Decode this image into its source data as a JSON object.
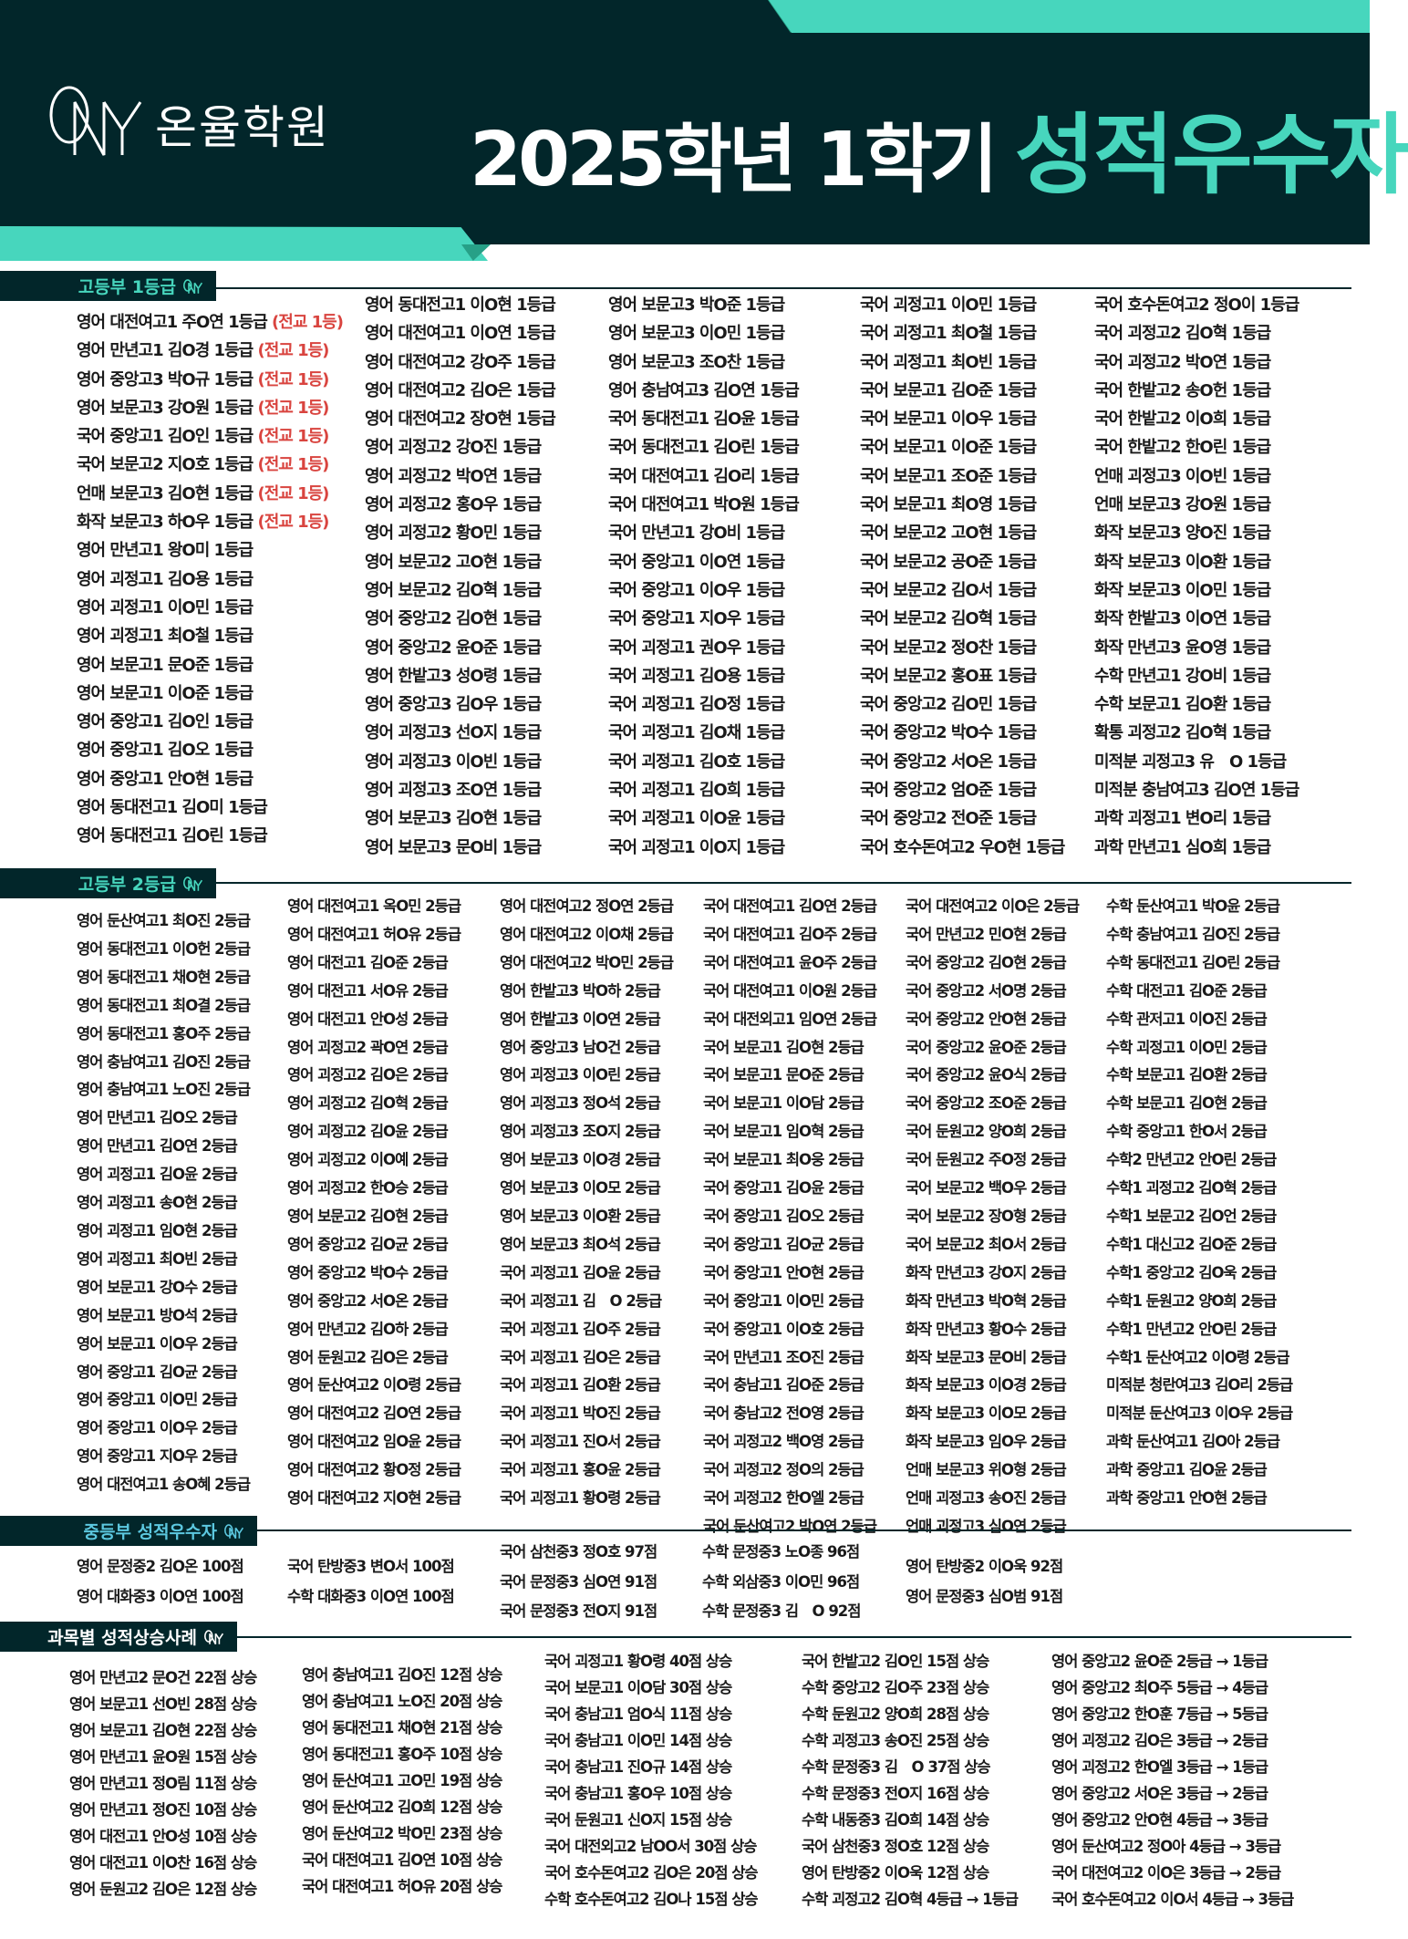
{
  "header": {
    "brand_name": "온율학원",
    "logo_text": "ONY",
    "title": "2025학년 1학기",
    "title_accent": "성적우수자",
    "colors": {
      "dark": "#02262a",
      "accent": "#47d6bd",
      "highlight": "#d9443f"
    }
  },
  "sections": {
    "high1": {
      "label": "고등부 1등급",
      "columns": [
        [
          {
            "text": "영어 대전여고1 주O연 1등급",
            "badge": "(전교 1등)"
          },
          {
            "text": "영어 만년고1 김O경 1등급",
            "badge": "(전교 1등)"
          },
          {
            "text": "영어 중앙고3 박O규 1등급",
            "badge": "(전교 1등)"
          },
          {
            "text": "영어 보문고3 강O원 1등급",
            "badge": "(전교 1등)"
          },
          {
            "text": "국어 중앙고1 김O인 1등급",
            "badge": "(전교 1등)"
          },
          {
            "text": "국어 보문고2 지O호 1등급",
            "badge": "(전교 1등)"
          },
          {
            "text": "언매 보문고3 김O현 1등급",
            "badge": "(전교 1등)"
          },
          {
            "text": "화작 보문고3 하O우 1등급",
            "badge": "(전교 1등)"
          },
          {
            "text": "영어 만년고1 왕O미 1등급"
          },
          {
            "text": "영어 괴정고1 김O용 1등급"
          },
          {
            "text": "영어 괴정고1 이O민 1등급"
          },
          {
            "text": "영어 괴정고1 최O철 1등급"
          },
          {
            "text": "영어 보문고1 문O준 1등급"
          },
          {
            "text": "영어 보문고1 이O준 1등급"
          },
          {
            "text": "영어 중앙고1 김O인 1등급"
          },
          {
            "text": "영어 중앙고1 김O오 1등급"
          },
          {
            "text": "영어 중앙고1 안O현 1등급"
          },
          {
            "text": "영어 동대전고1 김O미 1등급"
          },
          {
            "text": "영어 동대전고1 김O린 1등급"
          }
        ],
        [
          "영어 동대전고1 이O현 1등급",
          "영어 대전여고1 이O연 1등급",
          "영어 대전여고2 강O주 1등급",
          "영어 대전여고2 김O은 1등급",
          "영어 대전여고2 장O현 1등급",
          "영어 괴정고2 강O진 1등급",
          "영어 괴정고2 박O연 1등급",
          "영어 괴정고2 홍O우 1등급",
          "영어 괴정고2 황O민 1등급",
          "영어 보문고2 고O현 1등급",
          "영어 보문고2 김O혁 1등급",
          "영어 중앙고2 김O현 1등급",
          "영어 중앙고2 윤O준 1등급",
          "영어 한밭고3 성O령 1등급",
          "영어 중앙고3 김O우 1등급",
          "영어 괴정고3 선O지 1등급",
          "영어 괴정고3 이O빈 1등급",
          "영어 괴정고3 조O연 1등급",
          "영어 보문고3 김O현 1등급",
          "영어 보문고3 문O비 1등급"
        ],
        [
          "영어 보문고3 박O준 1등급",
          "영어 보문고3 이O민 1등급",
          "영어 보문고3 조O찬 1등급",
          "영어 충남여고3 김O연 1등급",
          "국어 동대전고1 김O윤 1등급",
          "국어 동대전고1 김O린 1등급",
          "국어 대전여고1 김O리 1등급",
          "국어 대전여고1 박O원 1등급",
          "국어 만년고1 강O비 1등급",
          "국어 중앙고1 이O연 1등급",
          "국어 중앙고1 이O우 1등급",
          "국어 중앙고1 지O우 1등급",
          "국어 괴정고1 권O우 1등급",
          "국어 괴정고1 김O용 1등급",
          "국어 괴정고1 김O정 1등급",
          "국어 괴정고1 김O채 1등급",
          "국어 괴정고1 김O호 1등급",
          "국어 괴정고1 김O희 1등급",
          "국어 괴정고1 이O윤 1등급",
          "국어 괴정고1 이O지 1등급"
        ],
        [
          "국어 괴정고1 이O민 1등급",
          "국어 괴정고1 최O철 1등급",
          "국어 괴정고1 최O빈 1등급",
          "국어 보문고1 김O준 1등급",
          "국어 보문고1 이O우 1등급",
          "국어 보문고1 이O준 1등급",
          "국어 보문고1 조O준 1등급",
          "국어 보문고1 최O영 1등급",
          "국어 보문고2 고O현 1등급",
          "국어 보문고2 공O준 1등급",
          "국어 보문고2 김O서 1등급",
          "국어 보문고2 김O혁 1등급",
          "국어 보문고2 정O찬 1등급",
          "국어 보문고2 홍O표 1등급",
          "국어 중앙고2 김O민 1등급",
          "국어 중앙고2 박O수 1등급",
          "국어 중앙고2 서O온 1등급",
          "국어 중앙고2 엄O준 1등급",
          "국어 중앙고2 전O준 1등급",
          "국어 호수돈여고2 우O현 1등급"
        ],
        [
          "국어 호수돈여고2 정O이 1등급",
          "국어 괴정고2 김O혁 1등급",
          "국어 괴정고2 박O연 1등급",
          "국어 한밭고2 송O헌 1등급",
          "국어 한밭고2 이O희 1등급",
          "국어 한밭고2 한O린 1등급",
          "언매 괴정고3 이O빈 1등급",
          "언매 보문고3 강O원 1등급",
          "화작 보문고3 양O진 1등급",
          "화작 보문고3 이O환 1등급",
          "화작 보문고3 이O민 1등급",
          "화작 한밭고3 이O연 1등급",
          "화작 만년고3 윤O영 1등급",
          "수학 만년고1 강O비 1등급",
          "수학 보문고1 김O환 1등급",
          "확통 괴정고2 김O혁 1등급",
          "미적분 괴정고3 유　O 1등급",
          "미적분 충남여고3 김O연 1등급",
          "과학 괴정고1 변O리 1등급",
          "과학 만년고1 심O희 1등급"
        ]
      ]
    },
    "high2": {
      "label": "고등부 2등급",
      "columns": [
        [
          "영어 둔산여고1 최O진 2등급",
          "영어 동대전고1 이O헌 2등급",
          "영어 동대전고1 채O현 2등급",
          "영어 동대전고1 최O결 2등급",
          "영어 동대전고1 홍O주 2등급",
          "영어 충남여고1 김O진 2등급",
          "영어 충남여고1 노O진 2등급",
          "영어 만년고1 김O오 2등급",
          "영어 만년고1 김O연 2등급",
          "영어 괴정고1 김O윤 2등급",
          "영어 괴정고1 송O현 2등급",
          "영어 괴정고1 임O현 2등급",
          "영어 괴정고1 최O빈 2등급",
          "영어 보문고1 강O수 2등급",
          "영어 보문고1 방O석 2등급",
          "영어 보문고1 이O우 2등급",
          "영어 중앙고1 김O균 2등급",
          "영어 중앙고1 이O민 2등급",
          "영어 중앙고1 이O우 2등급",
          "영어 중앙고1 지O우 2등급",
          "영어 대전여고1 송O혜 2등급"
        ],
        [
          "영어 대전여고1 옥O민 2등급",
          "영어 대전여고1 허O유 2등급",
          "영어 대전고1 김O준 2등급",
          "영어 대전고1 서O유 2등급",
          "영어 대전고1 안O성 2등급",
          "영어 괴정고2 곽O연 2등급",
          "영어 괴정고2 김O은 2등급",
          "영어 괴정고2 김O혁 2등급",
          "영어 괴정고2 김O윤 2등급",
          "영어 괴정고2 이O예 2등급",
          "영어 괴정고2 한O승 2등급",
          "영어 보문고2 김O현 2등급",
          "영어 중앙고2 김O균 2등급",
          "영어 중앙고2 박O수 2등급",
          "영어 중앙고2 서O온 2등급",
          "영어 만년고2 김O하 2등급",
          "영어 둔원고2 김O은 2등급",
          "영어 둔산여고2 이O령 2등급",
          "영어 대전여고2 김O연 2등급",
          "영어 대전여고2 임O윤 2등급",
          "영어 대전여고2 황O정 2등급",
          "영어 대전여고2 지O현 2등급"
        ],
        [
          "영어 대전여고2 정O연 2등급",
          "영어 대전여고2 이O채 2등급",
          "영어 대전여고2 박O민 2등급",
          "영어 한밭고3 박O하 2등급",
          "영어 한밭고3 이O연 2등급",
          "영어 중앙고3 남O건 2등급",
          "영어 괴정고3 이O린 2등급",
          "영어 괴정고3 정O석 2등급",
          "영어 괴정고3 조O지 2등급",
          "영어 보문고3 이O경 2등급",
          "영어 보문고3 이O모 2등급",
          "영어 보문고3 이O환 2등급",
          "영어 보문고3 최O석 2등급",
          "국어 괴정고1 김O윤 2등급",
          "국어 괴정고1 김　O 2등급",
          "국어 괴정고1 김O주 2등급",
          "국어 괴정고1 김O은 2등급",
          "국어 괴정고1 김O환 2등급",
          "국어 괴정고1 박O진 2등급",
          "국어 괴정고1 진O서 2등급",
          "국어 괴정고1 홍O윤 2등급",
          "국어 괴정고1 황O령 2등급"
        ],
        [
          "국어 대전여고1 김O연 2등급",
          "국어 대전여고1 김O주 2등급",
          "국어 대전여고1 윤O주 2등급",
          "국어 대전여고1 이O원 2등급",
          "국어 대전외고1 임O연 2등급",
          "국어 보문고1 김O현 2등급",
          "국어 보문고1 문O준 2등급",
          "국어 보문고1 이O담 2등급",
          "국어 보문고1 임O혁 2등급",
          "국어 보문고1 최O웅 2등급",
          "국어 중앙고1 김O윤 2등급",
          "국어 중앙고1 김O오 2등급",
          "국어 중앙고1 김O균 2등급",
          "국어 중앙고1 안O현 2등급",
          "국어 중앙고1 이O민 2등급",
          "국어 중앙고1 이O호 2등급",
          "국어 만년고1 조O진 2등급",
          "국어 충남고1 김O준 2등급",
          "국어 충남고2 전O영 2등급",
          "국어 괴정고2 백O영 2등급",
          "국어 괴정고2 정O의 2등급",
          "국어 괴정고2 한O엘 2등급",
          "국어 둔산여고2 박O연 2등급"
        ],
        [
          "국어 대전여고2 이O은 2등급",
          "국어 만년고2 민O현 2등급",
          "국어 중앙고2 김O현 2등급",
          "국어 중앙고2 서O명 2등급",
          "국어 중앙고2 안O현 2등급",
          "국어 중앙고2 윤O준 2등급",
          "국어 중앙고2 윤O식 2등급",
          "국어 중앙고2 조O준 2등급",
          "국어 둔원고2 양O희 2등급",
          "국어 둔원고2 주O정 2등급",
          "국어 보문고2 백O우 2등급",
          "국어 보문고2 장O형 2등급",
          "국어 보문고2 최O서 2등급",
          "화작 만년고3 강O지 2등급",
          "화작 만년고3 박O혁 2등급",
          "화작 만년고3 황O수 2등급",
          "화작 보문고3 문O비 2등급",
          "화작 보문고3 이O경 2등급",
          "화작 보문고3 이O모 2등급",
          "화작 보문고3 임O우 2등급",
          "언매 보문고3 위O형 2등급",
          "언매 괴정고3 송O진 2등급",
          "언매 괴정고3 심O연 2등급"
        ],
        [
          "수학 둔산여고1 박O윤 2등급",
          "수학 충남여고1 김O진 2등급",
          "수학 동대전고1 김O린 2등급",
          "수학 대전고1 김O준 2등급",
          "수학 관저고1 이O진 2등급",
          "수학 괴정고1 이O민 2등급",
          "수학 보문고1 김O환 2등급",
          "수학 보문고1 김O현 2등급",
          "수학 중앙고1 한O서 2등급",
          "수학2 만년고2 안O린 2등급",
          "수학1 괴정고2 김O혁 2등급",
          "수학1 보문고2 김O언 2등급",
          "수학1 대신고2 김O준 2등급",
          "수학1 중앙고2 김O욱 2등급",
          "수학1 둔원고2 양O희 2등급",
          "수학1 만년고2 안O린 2등급",
          "수학1 둔산여고2 이O령 2등급",
          "미적분 청란여고3 김O리 2등급",
          "미적분 둔산여고3 이O우 2등급",
          "과학 둔산여고1 김O아 2등급",
          "과학 중앙고1 김O윤 2등급",
          "과학 중앙고1 안O현 2등급"
        ]
      ]
    },
    "middle": {
      "label": "중등부 성적우수자",
      "columns": [
        [
          "영어 문정중2 김O온 100점",
          "영어 대화중3 이O연 100점"
        ],
        [
          "국어 탄방중3 변O서 100점",
          "수학 대화중3 이O연 100점"
        ],
        [
          "국어 삼천중3 정O호 97점",
          "국어 문정중3 심O연 91점",
          "국어 문정중3 전O지 91점"
        ],
        [
          "수학 문정중3 노O종 96점",
          "수학 외삼중3 이O민 96점",
          "수학 문정중3 김　O 92점"
        ],
        [
          "영어 탄방중2 이O욱 92점",
          "영어 문정중3 심O범 91점"
        ]
      ]
    },
    "improvement": {
      "label": "과목별 성적상승사례",
      "columns": [
        [
          "영어 만년고2 문O건 22점 상승",
          "영어 보문고1 선O빈 28점 상승",
          "영어 보문고1 김O현 22점 상승",
          "영어 만년고1 윤O원 15점 상승",
          "영어 만년고1 정O림 11점 상승",
          "영어 만년고1 정O진 10점 상승",
          "영어 대전고1 안O성 10점 상승",
          "영어 대전고1 이O찬 16점 상승",
          "영어 둔원고2 김O은 12점 상승"
        ],
        [
          "영어 충남여고1 김O진 12점 상승",
          "영어 충남여고1 노O진 20점 상승",
          "영어 동대전고1 채O현 21점 상승",
          "영어 동대전고1 홍O주 10점 상승",
          "영어 둔산여고1 고O민 19점 상승",
          "영어 둔산여고2 김O희 12점 상승",
          "영어 둔산여고2 박O민 23점 상승",
          "국어 대전여고1 김O연 10점 상승",
          "국어 대전여고1 허O유 20점 상승"
        ],
        [
          "국어 괴정고1 황O령 40점 상승",
          "국어 보문고1 이O담 30점 상승",
          "국어 충남고1 엄O식 11점 상승",
          "국어 충남고1 이O민 14점 상승",
          "국어 충남고1 진O규 14점 상승",
          "국어 충남고1 홍O우 10점 상승",
          "국어 둔원고1 신O지 15점 상승",
          "국어 대전외고2 남OO서 30점 상승",
          "국어 호수돈여고2 김O은 20점 상승",
          "수학 호수돈여고2 김O나 15점 상승"
        ],
        [
          "국어 한밭고2 김O인 15점 상승",
          "수학 중앙고2 김O주 23점 상승",
          "수학 둔원고2 양O희 28점 상승",
          "수학 괴정고3 송O진 25점 상승",
          "수학 문정중3 김　O 37점 상승",
          "수학 문정중3 전O지 16점 상승",
          "수학 내동중3 김O희 14점 상승",
          "국어 삼천중3 정O호 12점 상승",
          "영어 탄방중2 이O욱 12점 상승",
          "수학 괴정고2 김O혁  4등급 → 1등급"
        ],
        [
          "영어 중앙고2 윤O준 2등급 → 1등급",
          "영어 중앙고2 최O주 5등급 → 4등급",
          "영어 중앙고2 한O훈 7등급 → 5등급",
          "영어 괴정고2 김O은 3등급 → 2등급",
          "영어 괴정고2 한O엘 3등급 → 1등급",
          "영어 중앙고2 서O온 3등급 → 2등급",
          "영어 중앙고2 안O현 4등급 → 3등급",
          "영어 둔산여고2 정O아 4등급 → 3등급",
          "국어 대전여고2 이O은 3등급 → 2등급",
          "국어 호수돈여고2 이O서 4등급 → 3등급"
        ]
      ]
    }
  }
}
